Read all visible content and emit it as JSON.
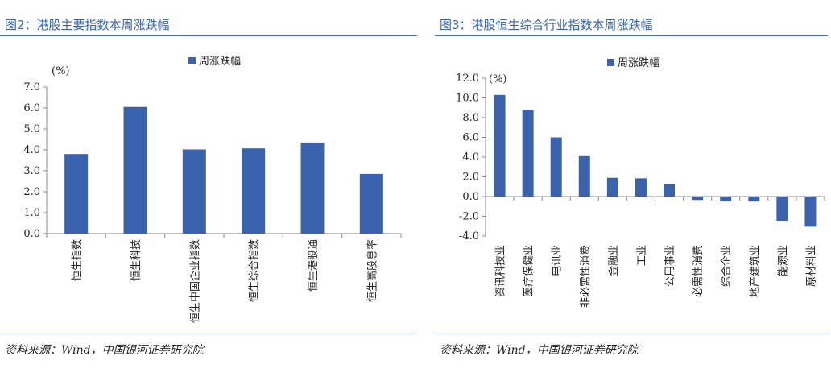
{
  "left": {
    "title": "图2：港股主要指数本周涨跌幅",
    "source": "资料来源：Wind，中国银河证券研究院"
  },
  "right": {
    "title": "图3：港股恒生综合行业指数本周涨跌幅",
    "source": "资料来源：Wind，中国银河证券研究院"
  },
  "colors": {
    "bar": "#3b62ad",
    "negative_tick": "#e0302c",
    "rule": "#4a6fb0"
  },
  "chart_data": [
    {
      "type": "bar",
      "unit_label": "(%)",
      "categories": [
        "恒生指数",
        "恒生科技",
        "恒生中国企业指数",
        "恒生综合指数",
        "恒生港股通",
        "恒生高股息率"
      ],
      "series": [
        {
          "name": "周涨跌幅",
          "values": [
            3.8,
            6.05,
            4.02,
            4.07,
            4.35,
            2.85
          ]
        }
      ],
      "ylim": [
        0,
        7
      ],
      "yticks": [
        "0.0",
        "1.0",
        "2.0",
        "3.0",
        "4.0",
        "5.0",
        "6.0",
        "7.0"
      ],
      "legend": "top"
    },
    {
      "type": "bar",
      "unit_label": "(%)",
      "categories": [
        "资讯科技业",
        "医疗保健业",
        "电讯业",
        "非必需性消费",
        "金融业",
        "工业",
        "公用事业",
        "必需性消费",
        "综合企业",
        "地产建筑业",
        "能源业",
        "原材料业"
      ],
      "series": [
        {
          "name": "周涨跌幅",
          "values": [
            10.3,
            8.8,
            6.0,
            4.1,
            1.9,
            1.85,
            1.25,
            -0.35,
            -0.5,
            -0.5,
            -2.45,
            -3.05
          ]
        }
      ],
      "ylim": [
        -4,
        12
      ],
      "yticks": [
        "-4.0",
        "-2.0",
        "0.0",
        "2.0",
        "4.0",
        "6.0",
        "8.0",
        "10.0",
        "12.0"
      ],
      "legend": "top"
    }
  ]
}
